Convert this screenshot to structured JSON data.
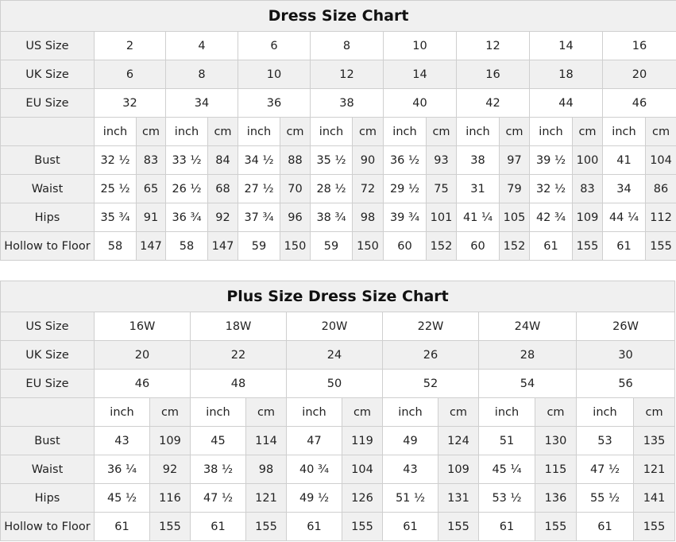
{
  "tables": [
    {
      "title": "Dress Size Chart",
      "us_label": "US Size",
      "uk_label": "UK Size",
      "eu_label": "EU Size",
      "us": [
        "2",
        "4",
        "6",
        "8",
        "10",
        "12",
        "14",
        "16"
      ],
      "uk": [
        "6",
        "8",
        "10",
        "12",
        "14",
        "16",
        "18",
        "20"
      ],
      "eu": [
        "32",
        "34",
        "36",
        "38",
        "40",
        "42",
        "44",
        "46"
      ],
      "unit_inch": "inch",
      "unit_cm": "cm",
      "measures": [
        {
          "label": "Bust",
          "values": [
            "32 ½",
            "83",
            "33 ½",
            "84",
            "34 ½",
            "88",
            "35 ½",
            "90",
            "36 ½",
            "93",
            "38",
            "97",
            "39 ½",
            "100",
            "41",
            "104"
          ]
        },
        {
          "label": "Waist",
          "values": [
            "25 ½",
            "65",
            "26 ½",
            "68",
            "27 ½",
            "70",
            "28 ½",
            "72",
            "29 ½",
            "75",
            "31",
            "79",
            "32 ½",
            "83",
            "34",
            "86"
          ]
        },
        {
          "label": "Hips",
          "values": [
            "35 ¾",
            "91",
            "36 ¾",
            "92",
            "37 ¾",
            "96",
            "38 ¾",
            "98",
            "39 ¾",
            "101",
            "41 ¼",
            "105",
            "42 ¾",
            "109",
            "44 ¼",
            "112"
          ]
        },
        {
          "label": "Hollow to Floor",
          "values": [
            "58",
            "147",
            "58",
            "147",
            "59",
            "150",
            "59",
            "150",
            "60",
            "152",
            "60",
            "152",
            "61",
            "155",
            "61",
            "155"
          ]
        }
      ]
    },
    {
      "title": "Plus Size Dress Size Chart",
      "us_label": "US Size",
      "uk_label": "UK Size",
      "eu_label": "EU Size",
      "us": [
        "16W",
        "18W",
        "20W",
        "22W",
        "24W",
        "26W"
      ],
      "uk": [
        "20",
        "22",
        "24",
        "26",
        "28",
        "30"
      ],
      "eu": [
        "46",
        "48",
        "50",
        "52",
        "54",
        "56"
      ],
      "unit_inch": "inch",
      "unit_cm": "cm",
      "measures": [
        {
          "label": "Bust",
          "values": [
            "43",
            "109",
            "45",
            "114",
            "47",
            "119",
            "49",
            "124",
            "51",
            "130",
            "53",
            "135"
          ]
        },
        {
          "label": "Waist",
          "values": [
            "36 ¼",
            "92",
            "38 ½",
            "98",
            "40 ¾",
            "104",
            "43",
            "109",
            "45 ¼",
            "115",
            "47 ½",
            "121"
          ]
        },
        {
          "label": "Hips",
          "values": [
            "45 ½",
            "116",
            "47 ½",
            "121",
            "49 ½",
            "126",
            "51 ½",
            "131",
            "53 ½",
            "136",
            "55 ½",
            "141"
          ]
        },
        {
          "label": "Hollow to Floor",
          "values": [
            "61",
            "155",
            "61",
            "155",
            "61",
            "155",
            "61",
            "155",
            "61",
            "155",
            "61",
            "155"
          ]
        }
      ]
    }
  ]
}
